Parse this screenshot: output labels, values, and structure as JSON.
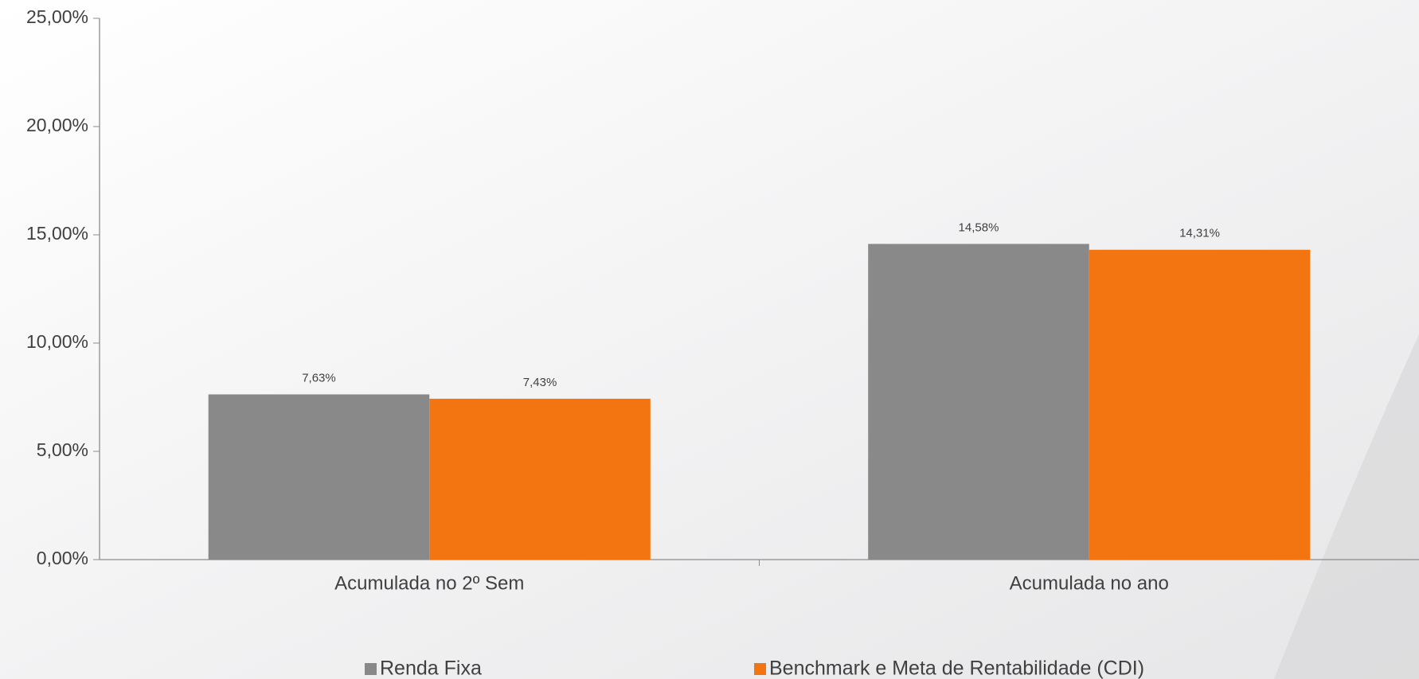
{
  "chart_data": {
    "type": "bar",
    "categories": [
      "Acumulada no 2º Sem",
      "Acumulada no ano"
    ],
    "series": [
      {
        "name": "Renda Fixa",
        "color": "#898989",
        "values": [
          7.63,
          14.58
        ],
        "value_labels": [
          "7,63%",
          "14,58%"
        ]
      },
      {
        "name": "Benchmark e Meta de Rentabilidade (CDI)",
        "color": "#f27511",
        "values": [
          7.43,
          14.31
        ],
        "value_labels": [
          "7,43%",
          "14,31%"
        ]
      }
    ],
    "ylim": [
      0,
      25
    ],
    "yticks": [
      {
        "value": 0,
        "label": "0,00%"
      },
      {
        "value": 5,
        "label": "5,00%"
      },
      {
        "value": 10,
        "label": "10,00%"
      },
      {
        "value": 15,
        "label": "15,00%"
      },
      {
        "value": 20,
        "label": "20,00%"
      },
      {
        "value": 25,
        "label": "25,00%"
      }
    ],
    "grid": false,
    "legend": "bottom"
  }
}
